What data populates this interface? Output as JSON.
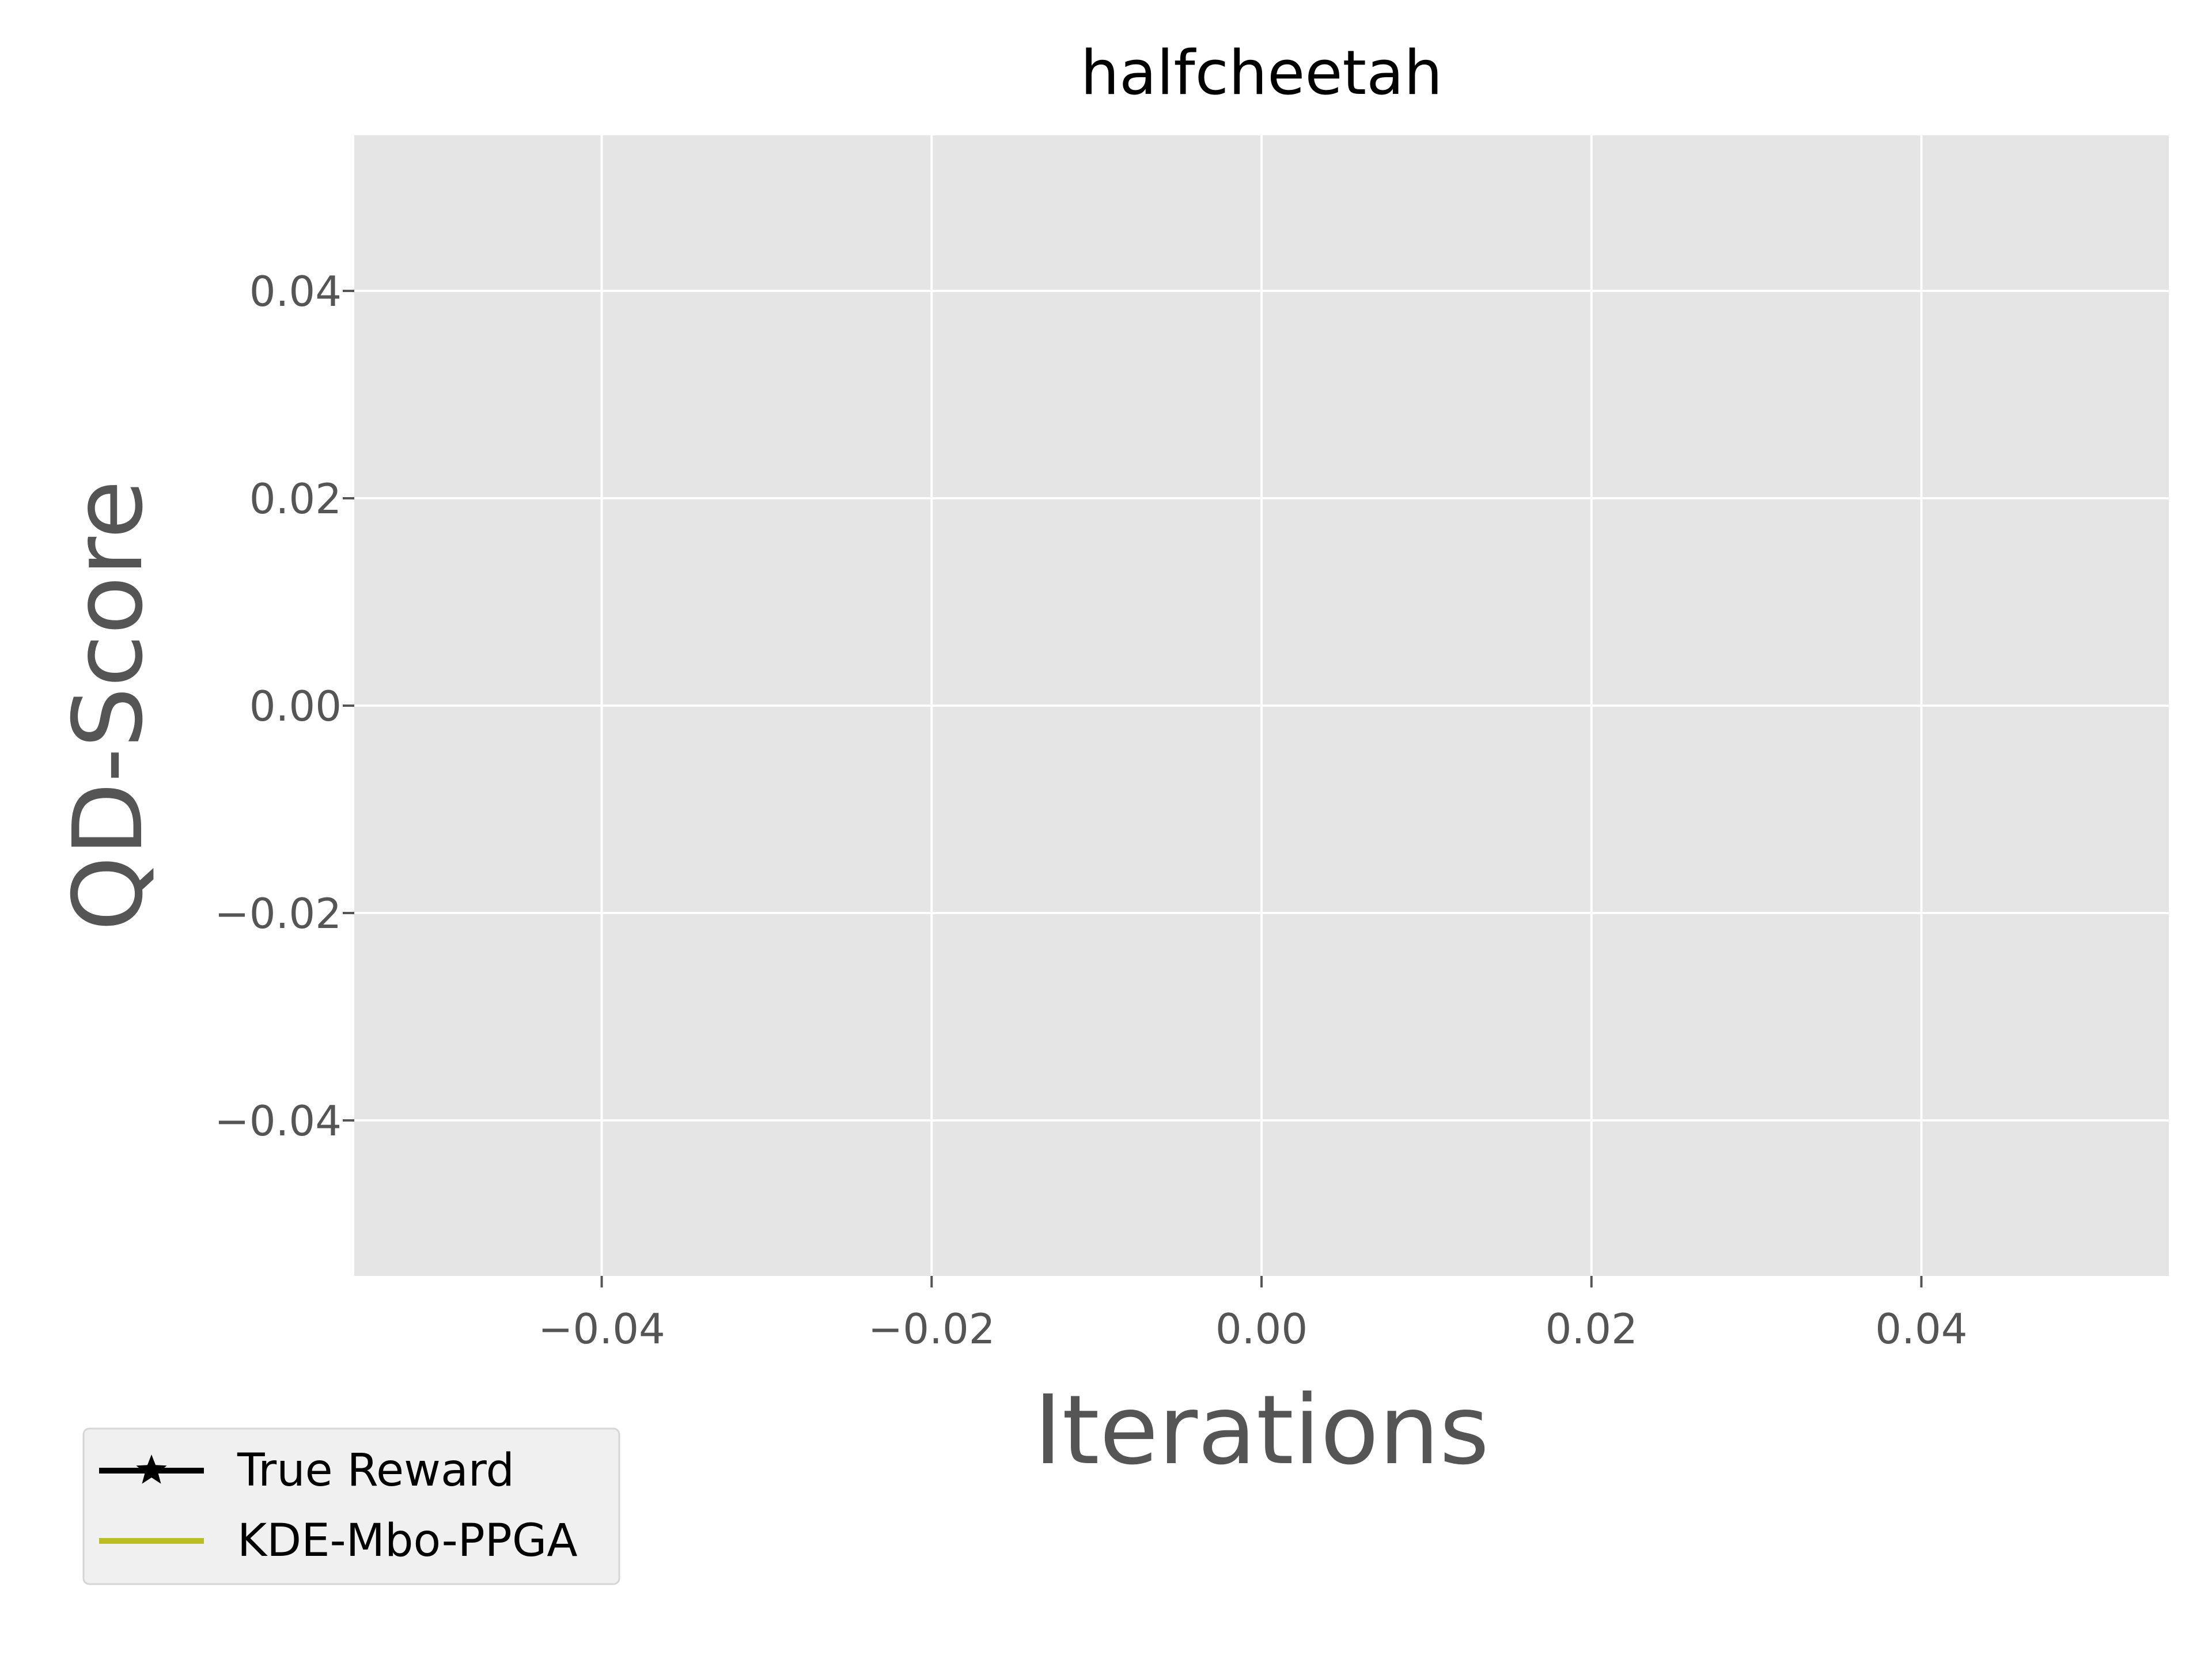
{
  "chart_data": {
    "type": "line",
    "title": "halfcheetah",
    "xlabel": "Iterations",
    "ylabel": "QD-Score",
    "xlim": [
      -0.055,
      0.055
    ],
    "ylim": [
      -0.055,
      0.055
    ],
    "x_ticks": [
      -0.04,
      -0.02,
      0.0,
      0.02,
      0.04
    ],
    "y_ticks": [
      -0.04,
      -0.02,
      0.0,
      0.02,
      0.04
    ],
    "x_tick_labels": [
      "−0.04",
      "−0.02",
      "0.00",
      "0.02",
      "0.04"
    ],
    "y_tick_labels": [
      "−0.04",
      "−0.02",
      "0.00",
      "0.02",
      "0.04"
    ],
    "grid": true,
    "legend_position": "lower-left outside",
    "series": [
      {
        "name": "True Reward",
        "color": "#000000",
        "marker": "star",
        "x": [],
        "y": []
      },
      {
        "name": "KDE-Mbo-PPGA",
        "color": "#bcbd22",
        "marker": "none",
        "x": [],
        "y": []
      }
    ],
    "colors": {
      "plot_background": "#e5e5e5",
      "grid": "#ffffff",
      "tick_text": "#555555",
      "axis_label": "#555555"
    }
  }
}
